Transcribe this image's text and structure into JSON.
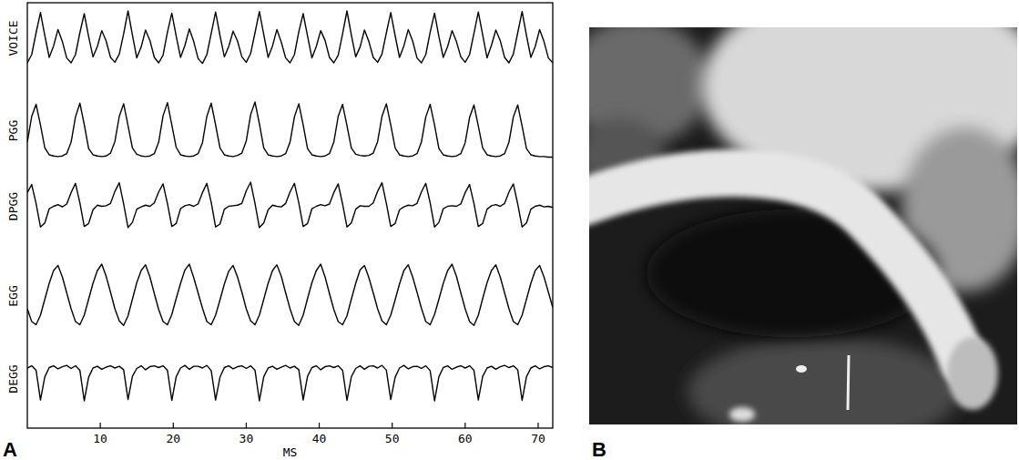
{
  "chart_data": {
    "type": "line",
    "panel_label": "A",
    "x_label": "MS",
    "x": [
      0,
      0.6,
      1.2,
      1.8,
      2.4,
      3,
      3.6,
      4.2,
      4.8,
      5.4,
      6,
      6.6,
      7.2,
      7.8,
      8.4,
      9,
      9.6,
      10.2,
      10.8,
      11.4,
      12,
      12.6,
      13.2,
      13.8,
      14.4,
      15,
      15.6,
      16.2,
      16.8,
      17.4,
      18,
      18.6,
      19.2,
      19.8,
      20.4,
      21,
      21.6,
      22.2,
      22.8,
      23.4,
      24,
      24.6,
      25.2,
      25.8,
      26.4,
      27,
      27.6,
      28.2,
      28.8,
      29.4,
      30,
      30.6,
      31.2,
      31.8,
      32.4,
      33,
      33.6,
      34.2,
      34.8,
      35.4,
      36,
      36.6,
      37.2,
      37.8,
      38.4,
      39,
      39.6,
      40.2,
      40.8,
      41.4,
      42,
      42.6,
      43.2,
      43.8,
      44.4,
      45,
      45.6,
      46.2,
      46.8,
      47.4,
      48,
      48.6,
      49.2,
      49.8,
      50.4,
      51,
      51.6,
      52.2,
      52.8,
      53.4,
      54,
      54.6,
      55.2,
      55.8,
      56.4,
      57,
      57.6,
      58.2,
      58.8,
      59.4,
      60,
      60.6,
      61.2,
      61.8,
      62.4,
      63,
      63.6,
      64.2,
      64.8,
      65.4,
      66,
      66.6,
      67.2,
      67.8,
      68.4,
      69,
      69.6,
      70.2,
      70.8,
      71.4,
      72
    ],
    "xlim": [
      0,
      72
    ],
    "xticks": [
      10,
      20,
      30,
      40,
      50,
      60,
      70
    ],
    "ylim": [
      0,
      1
    ],
    "tick_labels": "x",
    "series": [
      {
        "name": "VOICE",
        "color": "#000000",
        "values": [
          0.05,
          0.2,
          0.6,
          0.97,
          0.55,
          0.15,
          0.36,
          0.66,
          0.44,
          0.14,
          0.05,
          0.2,
          0.6,
          0.95,
          0.53,
          0.16,
          0.35,
          0.64,
          0.45,
          0.15,
          0.06,
          0.21,
          0.58,
          1.0,
          0.56,
          0.14,
          0.34,
          0.65,
          0.46,
          0.15,
          0.05,
          0.19,
          0.61,
          0.96,
          0.54,
          0.15,
          0.37,
          0.67,
          0.44,
          0.13,
          0.04,
          0.2,
          0.59,
          0.98,
          0.55,
          0.16,
          0.35,
          0.63,
          0.45,
          0.16,
          0.06,
          0.22,
          0.6,
          0.99,
          0.57,
          0.15,
          0.36,
          0.66,
          0.43,
          0.14,
          0.05,
          0.2,
          0.62,
          0.95,
          0.54,
          0.14,
          0.35,
          0.64,
          0.46,
          0.15,
          0.05,
          0.19,
          0.58,
          1.0,
          0.56,
          0.16,
          0.34,
          0.65,
          0.44,
          0.15,
          0.06,
          0.21,
          0.6,
          0.97,
          0.55,
          0.15,
          0.36,
          0.66,
          0.45,
          0.14,
          0.05,
          0.2,
          0.61,
          0.96,
          0.53,
          0.15,
          0.35,
          0.64,
          0.44,
          0.16,
          0.06,
          0.2,
          0.59,
          0.98,
          0.56,
          0.14,
          0.37,
          0.65,
          0.46,
          0.15,
          0.05,
          0.21,
          0.6,
          0.99,
          0.55,
          0.15,
          0.35,
          0.66,
          0.44,
          0.14,
          0.05
        ]
      },
      {
        "name": "PGG",
        "color": "#000000",
        "values": [
          0.3,
          0.75,
          0.96,
          0.6,
          0.2,
          0.08,
          0.06,
          0.05,
          0.06,
          0.1,
          0.3,
          0.74,
          0.98,
          0.61,
          0.19,
          0.08,
          0.06,
          0.05,
          0.06,
          0.11,
          0.31,
          0.75,
          0.97,
          0.59,
          0.2,
          0.09,
          0.06,
          0.05,
          0.06,
          0.1,
          0.3,
          0.76,
          0.99,
          0.6,
          0.21,
          0.08,
          0.06,
          0.05,
          0.06,
          0.1,
          0.29,
          0.75,
          0.98,
          0.6,
          0.2,
          0.08,
          0.06,
          0.05,
          0.07,
          0.11,
          0.32,
          0.78,
          1.0,
          0.62,
          0.2,
          0.08,
          0.06,
          0.05,
          0.06,
          0.1,
          0.3,
          0.74,
          0.97,
          0.6,
          0.19,
          0.08,
          0.06,
          0.05,
          0.06,
          0.1,
          0.3,
          0.75,
          0.96,
          0.59,
          0.2,
          0.09,
          0.07,
          0.06,
          0.07,
          0.11,
          0.31,
          0.75,
          0.97,
          0.6,
          0.2,
          0.08,
          0.06,
          0.05,
          0.06,
          0.1,
          0.3,
          0.74,
          0.96,
          0.6,
          0.19,
          0.08,
          0.06,
          0.05,
          0.06,
          0.1,
          0.29,
          0.73,
          0.95,
          0.58,
          0.2,
          0.08,
          0.06,
          0.05,
          0.06,
          0.1,
          0.3,
          0.74,
          0.95,
          0.58,
          0.19,
          0.08,
          0.06,
          0.05,
          0.05,
          0.04,
          0.04
        ]
      },
      {
        "name": "DPGG",
        "color": "#000000",
        "values": [
          0.74,
          0.88,
          0.55,
          0.14,
          0.21,
          0.46,
          0.5,
          0.53,
          0.49,
          0.54,
          0.74,
          0.9,
          0.56,
          0.15,
          0.2,
          0.44,
          0.52,
          0.5,
          0.51,
          0.55,
          0.76,
          0.91,
          0.54,
          0.13,
          0.22,
          0.45,
          0.49,
          0.52,
          0.5,
          0.56,
          0.75,
          0.89,
          0.55,
          0.15,
          0.2,
          0.46,
          0.51,
          0.53,
          0.5,
          0.54,
          0.74,
          0.9,
          0.57,
          0.14,
          0.19,
          0.45,
          0.5,
          0.51,
          0.52,
          0.55,
          0.77,
          0.92,
          0.55,
          0.13,
          0.21,
          0.44,
          0.52,
          0.5,
          0.49,
          0.55,
          0.75,
          0.9,
          0.56,
          0.15,
          0.2,
          0.46,
          0.5,
          0.53,
          0.51,
          0.54,
          0.74,
          0.89,
          0.54,
          0.14,
          0.21,
          0.45,
          0.51,
          0.5,
          0.5,
          0.56,
          0.76,
          0.91,
          0.55,
          0.15,
          0.2,
          0.44,
          0.49,
          0.52,
          0.51,
          0.55,
          0.75,
          0.9,
          0.56,
          0.14,
          0.22,
          0.46,
          0.5,
          0.51,
          0.5,
          0.54,
          0.74,
          0.88,
          0.55,
          0.15,
          0.2,
          0.45,
          0.51,
          0.53,
          0.5,
          0.55,
          0.75,
          0.89,
          0.54,
          0.14,
          0.21,
          0.45,
          0.5,
          0.52,
          0.49,
          0.5,
          0.48
        ]
      },
      {
        "name": "EGG",
        "color": "#000000",
        "values": [
          0.3,
          0.1,
          0.05,
          0.2,
          0.45,
          0.7,
          0.9,
          0.98,
          0.8,
          0.55,
          0.3,
          0.1,
          0.05,
          0.2,
          0.45,
          0.7,
          0.9,
          1.0,
          0.81,
          0.56,
          0.3,
          0.11,
          0.04,
          0.19,
          0.45,
          0.71,
          0.9,
          0.99,
          0.8,
          0.54,
          0.29,
          0.1,
          0.05,
          0.21,
          0.46,
          0.7,
          0.91,
          1.0,
          0.79,
          0.55,
          0.31,
          0.1,
          0.05,
          0.2,
          0.44,
          0.69,
          0.89,
          0.98,
          0.8,
          0.56,
          0.3,
          0.11,
          0.05,
          0.2,
          0.45,
          0.7,
          0.9,
          0.99,
          0.81,
          0.55,
          0.3,
          0.1,
          0.04,
          0.2,
          0.46,
          0.71,
          0.9,
          1.0,
          0.8,
          0.54,
          0.29,
          0.1,
          0.05,
          0.19,
          0.45,
          0.7,
          0.91,
          0.98,
          0.79,
          0.55,
          0.3,
          0.11,
          0.05,
          0.2,
          0.44,
          0.69,
          0.9,
          0.99,
          0.8,
          0.56,
          0.31,
          0.1,
          0.05,
          0.21,
          0.45,
          0.7,
          0.9,
          1.0,
          0.81,
          0.55,
          0.3,
          0.1,
          0.04,
          0.2,
          0.46,
          0.71,
          0.9,
          0.99,
          0.8,
          0.55,
          0.3,
          0.1,
          0.05,
          0.2,
          0.45,
          0.7,
          0.9,
          0.98,
          0.8,
          0.56,
          0.32
        ]
      },
      {
        "name": "DEGG",
        "color": "#000000",
        "values": [
          0.75,
          0.8,
          0.7,
          0.02,
          0.55,
          0.76,
          0.8,
          0.73,
          0.78,
          0.81,
          0.74,
          0.8,
          0.7,
          0.0,
          0.54,
          0.75,
          0.79,
          0.72,
          0.77,
          0.8,
          0.75,
          0.79,
          0.71,
          0.03,
          0.56,
          0.74,
          0.8,
          0.71,
          0.78,
          0.8,
          0.76,
          0.8,
          0.7,
          0.01,
          0.55,
          0.75,
          0.81,
          0.72,
          0.79,
          0.79,
          0.75,
          0.81,
          0.69,
          0.02,
          0.54,
          0.76,
          0.8,
          0.73,
          0.78,
          0.8,
          0.74,
          0.8,
          0.7,
          0.0,
          0.55,
          0.75,
          0.79,
          0.72,
          0.77,
          0.81,
          0.75,
          0.79,
          0.71,
          0.02,
          0.56,
          0.76,
          0.8,
          0.71,
          0.78,
          0.8,
          0.76,
          0.8,
          0.7,
          0.01,
          0.55,
          0.74,
          0.8,
          0.72,
          0.79,
          0.8,
          0.75,
          0.81,
          0.7,
          0.03,
          0.54,
          0.75,
          0.81,
          0.73,
          0.78,
          0.79,
          0.74,
          0.8,
          0.69,
          0.0,
          0.55,
          0.76,
          0.8,
          0.72,
          0.77,
          0.8,
          0.75,
          0.8,
          0.7,
          0.02,
          0.56,
          0.75,
          0.79,
          0.72,
          0.78,
          0.81,
          0.76,
          0.8,
          0.71,
          0.01,
          0.55,
          0.75,
          0.8,
          0.73,
          0.78,
          0.8,
          0.76
        ]
      }
    ]
  },
  "photo": {
    "panel_label": "B"
  }
}
